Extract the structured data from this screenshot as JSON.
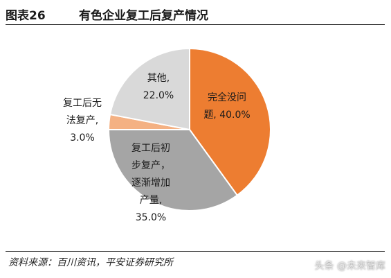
{
  "header": {
    "figure_number": "图表26",
    "title": "有色企业复工后复产情况"
  },
  "chart_data": {
    "type": "pie",
    "title": "有色企业复工后复产情况",
    "start_angle_deg": 0,
    "direction": "clockwise",
    "slices": [
      {
        "label_lines": [
          "完全没问",
          "题, 40.0%"
        ],
        "value": 40.0,
        "color": "#ED7D31"
      },
      {
        "label_lines": [
          "复工后初",
          "步复产，",
          "逐渐增加",
          "产量,",
          "35.0%"
        ],
        "value": 35.0,
        "color": "#A5A5A5"
      },
      {
        "label_lines": [
          "复工后无",
          "法复产,",
          "3.0%"
        ],
        "value": 3.0,
        "color": "#F4B183"
      },
      {
        "label_lines": [
          "其他,",
          "22.0%"
        ],
        "value": 22.0,
        "color": "#D9D9D9"
      }
    ]
  },
  "footer": {
    "source": "资料来源：百川资讯，平安证券研究所",
    "watermark": "头条 @未来智库"
  }
}
